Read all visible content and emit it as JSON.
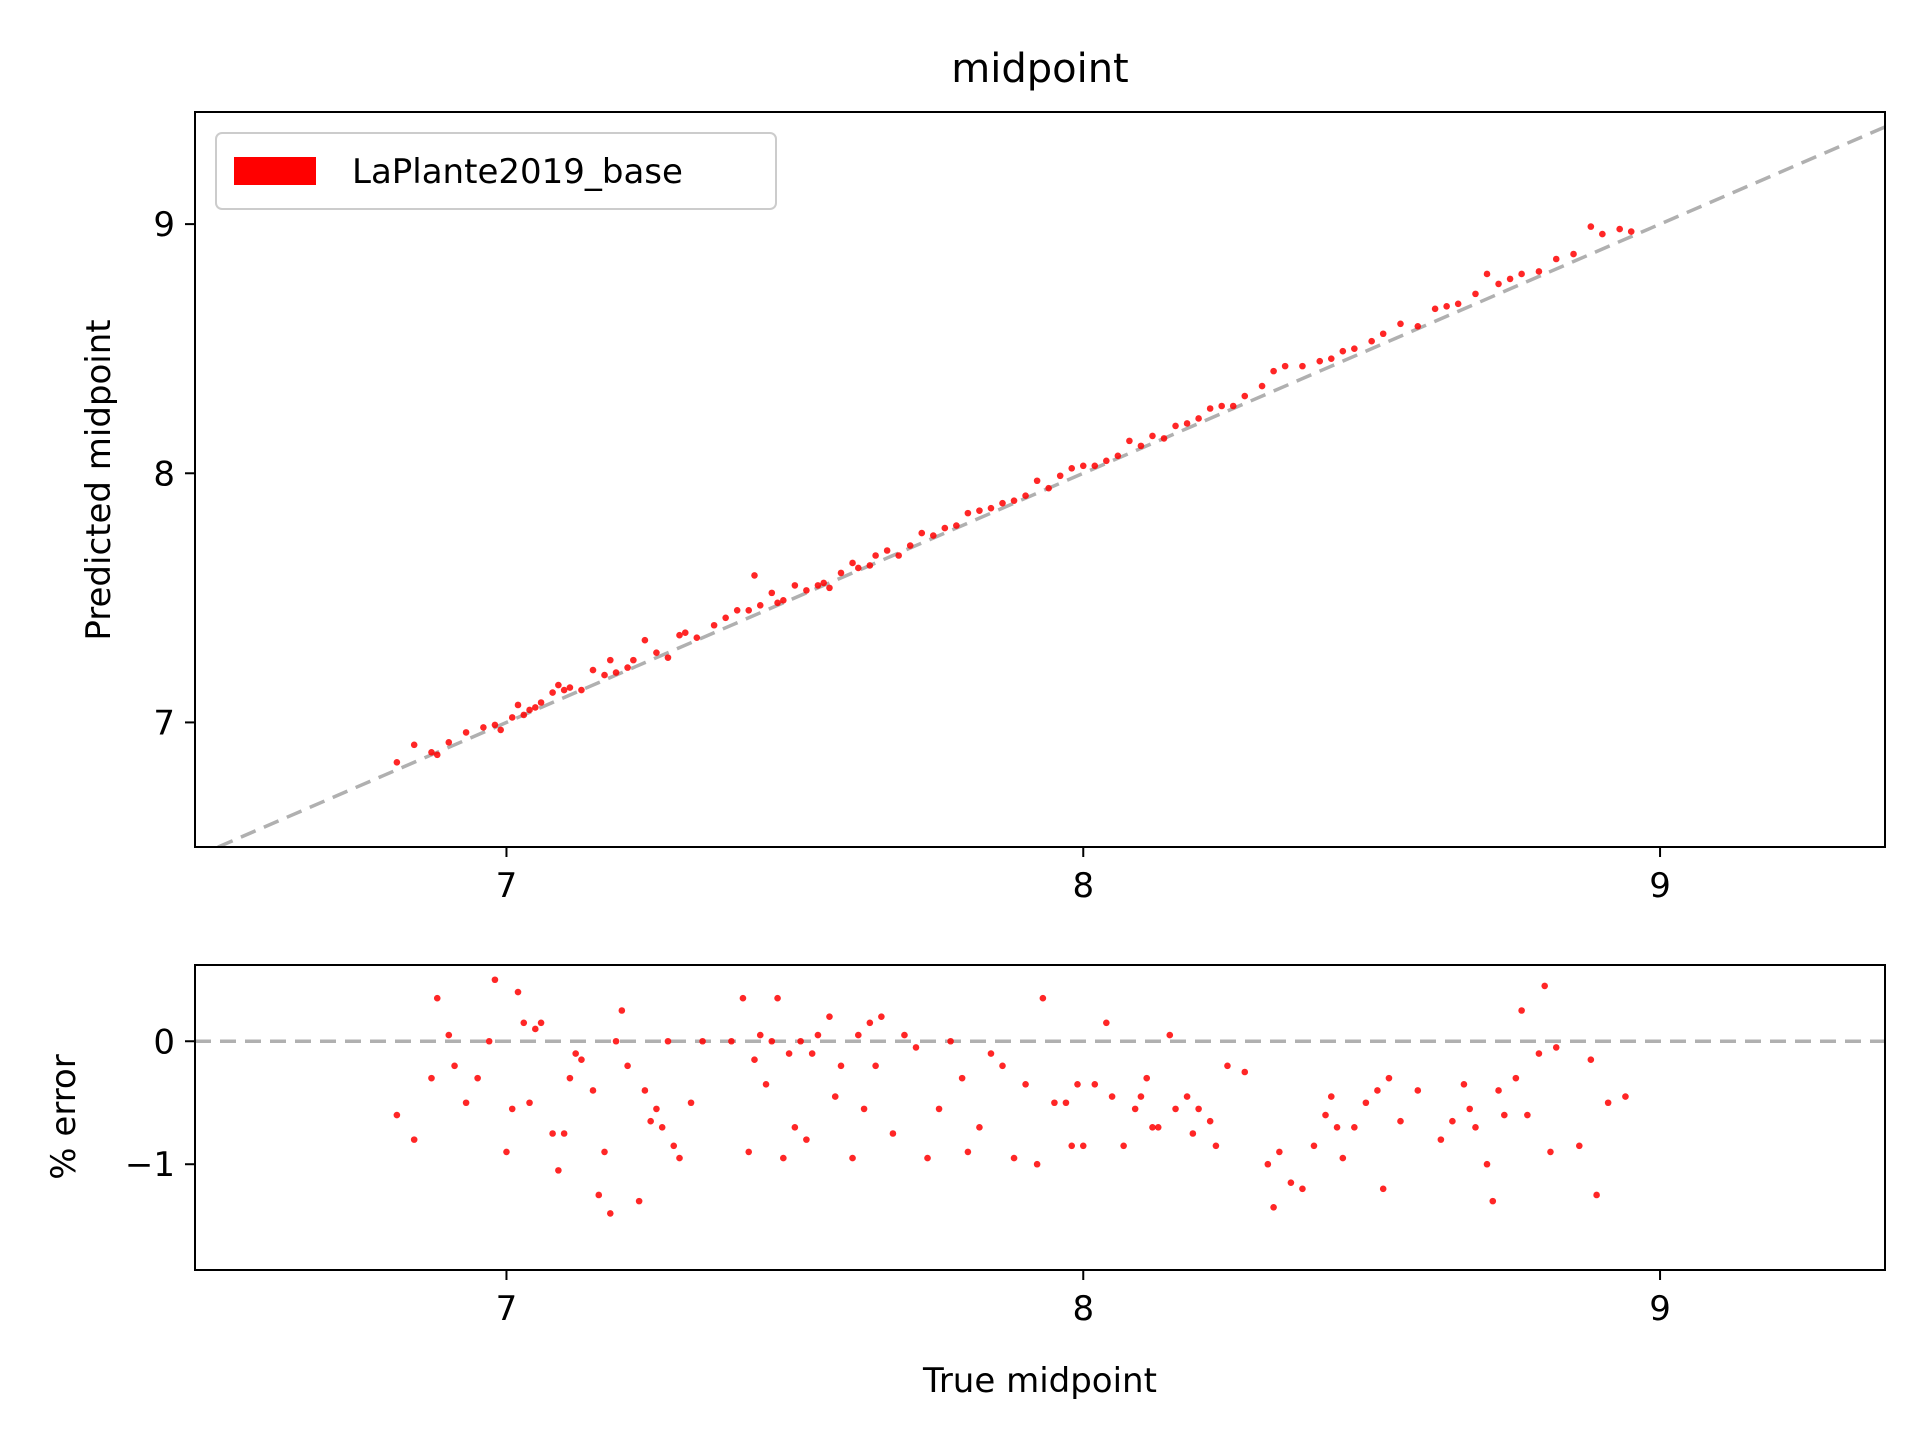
{
  "chart_data": [
    {
      "type": "scatter",
      "title": "midpoint",
      "xlabel": "",
      "ylabel": "Predicted midpoint",
      "xlim": [
        6.46,
        9.39
      ],
      "ylim": [
        6.5,
        9.45
      ],
      "xticks": [
        "7",
        "8",
        "9"
      ],
      "yticks": [
        "7",
        "8",
        "9"
      ],
      "grid": false,
      "legend": {
        "placement": "top-left",
        "entries": [
          "LaPlante2019_base"
        ]
      },
      "reference_line": {
        "style": "dashed",
        "color": "#b0b0b0",
        "x": [
          6.46,
          9.39
        ],
        "y": [
          6.46,
          9.39
        ]
      },
      "series": [
        {
          "name": "LaPlante2019_base",
          "color": "#ff0000",
          "points": [
            [
              6.81,
              6.84
            ],
            [
              6.84,
              6.91
            ],
            [
              6.87,
              6.88
            ],
            [
              6.88,
              6.87
            ],
            [
              6.9,
              6.92
            ],
            [
              6.93,
              6.96
            ],
            [
              6.96,
              6.98
            ],
            [
              6.98,
              6.99
            ],
            [
              6.99,
              6.97
            ],
            [
              7.01,
              7.02
            ],
            [
              7.02,
              7.07
            ],
            [
              7.03,
              7.03
            ],
            [
              7.04,
              7.05
            ],
            [
              7.05,
              7.06
            ],
            [
              7.06,
              7.08
            ],
            [
              7.08,
              7.12
            ],
            [
              7.09,
              7.15
            ],
            [
              7.1,
              7.13
            ],
            [
              7.11,
              7.14
            ],
            [
              7.13,
              7.13
            ],
            [
              7.15,
              7.21
            ],
            [
              7.17,
              7.19
            ],
            [
              7.18,
              7.25
            ],
            [
              7.19,
              7.2
            ],
            [
              7.21,
              7.22
            ],
            [
              7.22,
              7.25
            ],
            [
              7.24,
              7.33
            ],
            [
              7.26,
              7.28
            ],
            [
              7.28,
              7.26
            ],
            [
              7.3,
              7.35
            ],
            [
              7.31,
              7.36
            ],
            [
              7.33,
              7.34
            ],
            [
              7.36,
              7.39
            ],
            [
              7.38,
              7.42
            ],
            [
              7.4,
              7.45
            ],
            [
              7.42,
              7.45
            ],
            [
              7.43,
              7.59
            ],
            [
              7.44,
              7.47
            ],
            [
              7.46,
              7.52
            ],
            [
              7.47,
              7.48
            ],
            [
              7.48,
              7.49
            ],
            [
              7.5,
              7.55
            ],
            [
              7.52,
              7.53
            ],
            [
              7.54,
              7.55
            ],
            [
              7.55,
              7.56
            ],
            [
              7.56,
              7.54
            ],
            [
              7.58,
              7.6
            ],
            [
              7.6,
              7.64
            ],
            [
              7.61,
              7.62
            ],
            [
              7.63,
              7.63
            ],
            [
              7.64,
              7.67
            ],
            [
              7.66,
              7.69
            ],
            [
              7.68,
              7.67
            ],
            [
              7.7,
              7.71
            ],
            [
              7.72,
              7.76
            ],
            [
              7.74,
              7.75
            ],
            [
              7.76,
              7.78
            ],
            [
              7.78,
              7.79
            ],
            [
              7.8,
              7.84
            ],
            [
              7.82,
              7.85
            ],
            [
              7.84,
              7.86
            ],
            [
              7.86,
              7.88
            ],
            [
              7.88,
              7.89
            ],
            [
              7.9,
              7.91
            ],
            [
              7.92,
              7.97
            ],
            [
              7.94,
              7.94
            ],
            [
              7.96,
              7.99
            ],
            [
              7.98,
              8.02
            ],
            [
              8.0,
              8.03
            ],
            [
              8.02,
              8.03
            ],
            [
              8.04,
              8.05
            ],
            [
              8.06,
              8.07
            ],
            [
              8.08,
              8.13
            ],
            [
              8.1,
              8.11
            ],
            [
              8.12,
              8.15
            ],
            [
              8.14,
              8.14
            ],
            [
              8.16,
              8.19
            ],
            [
              8.18,
              8.2
            ],
            [
              8.2,
              8.22
            ],
            [
              8.22,
              8.26
            ],
            [
              8.24,
              8.27
            ],
            [
              8.26,
              8.27
            ],
            [
              8.28,
              8.31
            ],
            [
              8.31,
              8.35
            ],
            [
              8.33,
              8.41
            ],
            [
              8.35,
              8.43
            ],
            [
              8.38,
              8.43
            ],
            [
              8.41,
              8.45
            ],
            [
              8.43,
              8.46
            ],
            [
              8.45,
              8.49
            ],
            [
              8.47,
              8.5
            ],
            [
              8.5,
              8.53
            ],
            [
              8.52,
              8.56
            ],
            [
              8.55,
              8.6
            ],
            [
              8.58,
              8.59
            ],
            [
              8.61,
              8.66
            ],
            [
              8.63,
              8.67
            ],
            [
              8.65,
              8.68
            ],
            [
              8.68,
              8.72
            ],
            [
              8.7,
              8.8
            ],
            [
              8.72,
              8.76
            ],
            [
              8.74,
              8.78
            ],
            [
              8.76,
              8.8
            ],
            [
              8.79,
              8.81
            ],
            [
              8.82,
              8.86
            ],
            [
              8.85,
              8.88
            ],
            [
              8.88,
              8.99
            ],
            [
              8.9,
              8.96
            ],
            [
              8.93,
              8.98
            ],
            [
              8.95,
              8.97
            ]
          ]
        },
        {
          "name": "LaPlante2019_base",
          "color": "#ff0000",
          "role": "error",
          "xlabel": "True midpoint",
          "ylabel": "% error",
          "xlim": [
            6.46,
            9.39
          ],
          "ylim": [
            -1.86,
            0.62
          ],
          "xticks": [
            "7",
            "8",
            "9"
          ],
          "yticks": [
            "0",
            "−1"
          ],
          "zero_line": {
            "style": "dashed",
            "color": "#b0b0b0",
            "y": 0
          },
          "points": [
            [
              6.81,
              -0.6
            ],
            [
              6.84,
              -0.8
            ],
            [
              6.87,
              -0.3
            ],
            [
              6.88,
              0.35
            ],
            [
              6.9,
              0.05
            ],
            [
              6.91,
              -0.2
            ],
            [
              6.93,
              -0.5
            ],
            [
              6.95,
              -0.3
            ],
            [
              6.97,
              0.0
            ],
            [
              6.98,
              0.5
            ],
            [
              7.0,
              -0.9
            ],
            [
              7.01,
              -0.55
            ],
            [
              7.02,
              0.4
            ],
            [
              7.03,
              0.15
            ],
            [
              7.04,
              -0.5
            ],
            [
              7.05,
              0.1
            ],
            [
              7.06,
              0.15
            ],
            [
              7.08,
              -0.75
            ],
            [
              7.09,
              -1.05
            ],
            [
              7.1,
              -0.75
            ],
            [
              7.11,
              -0.3
            ],
            [
              7.12,
              -0.1
            ],
            [
              7.13,
              -0.15
            ],
            [
              7.15,
              -0.4
            ],
            [
              7.16,
              -1.25
            ],
            [
              7.17,
              -0.9
            ],
            [
              7.18,
              -1.4
            ],
            [
              7.19,
              0.0
            ],
            [
              7.2,
              0.25
            ],
            [
              7.21,
              -0.2
            ],
            [
              7.23,
              -1.3
            ],
            [
              7.24,
              -0.4
            ],
            [
              7.25,
              -0.65
            ],
            [
              7.26,
              -0.55
            ],
            [
              7.27,
              -0.7
            ],
            [
              7.28,
              0.0
            ],
            [
              7.29,
              -0.85
            ],
            [
              7.3,
              -0.95
            ],
            [
              7.32,
              -0.5
            ],
            [
              7.34,
              0.0
            ],
            [
              7.39,
              0.0
            ],
            [
              7.41,
              0.35
            ],
            [
              7.42,
              -0.9
            ],
            [
              7.43,
              -0.15
            ],
            [
              7.44,
              0.05
            ],
            [
              7.45,
              -0.35
            ],
            [
              7.46,
              0.0
            ],
            [
              7.47,
              0.35
            ],
            [
              7.48,
              -0.95
            ],
            [
              7.49,
              -0.1
            ],
            [
              7.5,
              -0.7
            ],
            [
              7.51,
              0.0
            ],
            [
              7.52,
              -0.8
            ],
            [
              7.53,
              -0.1
            ],
            [
              7.54,
              0.05
            ],
            [
              7.55,
              0.65
            ],
            [
              7.56,
              0.2
            ],
            [
              7.57,
              -0.45
            ],
            [
              7.58,
              -0.2
            ],
            [
              7.6,
              -0.95
            ],
            [
              7.61,
              0.05
            ],
            [
              7.62,
              -0.55
            ],
            [
              7.63,
              0.15
            ],
            [
              7.64,
              -0.2
            ],
            [
              7.65,
              0.2
            ],
            [
              7.67,
              -0.75
            ],
            [
              7.69,
              0.05
            ],
            [
              7.71,
              -0.05
            ],
            [
              7.73,
              -0.95
            ],
            [
              7.75,
              -0.55
            ],
            [
              7.77,
              0.0
            ],
            [
              7.79,
              -0.3
            ],
            [
              7.8,
              -0.9
            ],
            [
              7.82,
              -0.7
            ],
            [
              7.84,
              -0.1
            ],
            [
              7.86,
              -0.2
            ],
            [
              7.88,
              -0.95
            ],
            [
              7.9,
              -0.35
            ],
            [
              7.92,
              -1.0
            ],
            [
              7.93,
              0.35
            ],
            [
              7.95,
              -0.5
            ],
            [
              7.97,
              -0.5
            ],
            [
              7.98,
              -0.85
            ],
            [
              7.99,
              -0.35
            ],
            [
              8.0,
              -0.85
            ],
            [
              8.02,
              -0.35
            ],
            [
              8.04,
              0.15
            ],
            [
              8.05,
              -0.45
            ],
            [
              8.07,
              -0.85
            ],
            [
              8.09,
              -0.55
            ],
            [
              8.1,
              -0.45
            ],
            [
              8.11,
              -0.3
            ],
            [
              8.12,
              -0.7
            ],
            [
              8.13,
              -0.7
            ],
            [
              8.15,
              0.05
            ],
            [
              8.16,
              -0.55
            ],
            [
              8.18,
              -0.45
            ],
            [
              8.19,
              -0.75
            ],
            [
              8.2,
              -0.55
            ],
            [
              8.22,
              -0.65
            ],
            [
              8.23,
              -0.85
            ],
            [
              8.25,
              -0.2
            ],
            [
              8.28,
              -0.25
            ],
            [
              8.32,
              -1.0
            ],
            [
              8.33,
              -1.35
            ],
            [
              8.34,
              -0.9
            ],
            [
              8.36,
              -1.15
            ],
            [
              8.38,
              -1.2
            ],
            [
              8.4,
              -0.85
            ],
            [
              8.42,
              -0.6
            ],
            [
              8.43,
              -0.45
            ],
            [
              8.44,
              -0.7
            ],
            [
              8.45,
              -0.95
            ],
            [
              8.47,
              -0.7
            ],
            [
              8.49,
              -0.5
            ],
            [
              8.51,
              -0.4
            ],
            [
              8.52,
              -1.2
            ],
            [
              8.53,
              -0.3
            ],
            [
              8.55,
              -0.65
            ],
            [
              8.58,
              -0.4
            ],
            [
              8.62,
              -0.8
            ],
            [
              8.64,
              -0.65
            ],
            [
              8.66,
              -0.35
            ],
            [
              8.67,
              -0.55
            ],
            [
              8.68,
              -0.7
            ],
            [
              8.7,
              -1.0
            ],
            [
              8.71,
              -1.3
            ],
            [
              8.72,
              -0.4
            ],
            [
              8.73,
              -0.6
            ],
            [
              8.75,
              -0.3
            ],
            [
              8.76,
              0.25
            ],
            [
              8.77,
              -0.6
            ],
            [
              8.79,
              -0.1
            ],
            [
              8.8,
              0.45
            ],
            [
              8.81,
              -0.9
            ],
            [
              8.82,
              -0.05
            ],
            [
              8.86,
              -0.85
            ],
            [
              8.88,
              -0.15
            ],
            [
              8.89,
              -1.25
            ],
            [
              8.91,
              -0.5
            ],
            [
              8.94,
              -0.45
            ]
          ]
        }
      ]
    }
  ]
}
